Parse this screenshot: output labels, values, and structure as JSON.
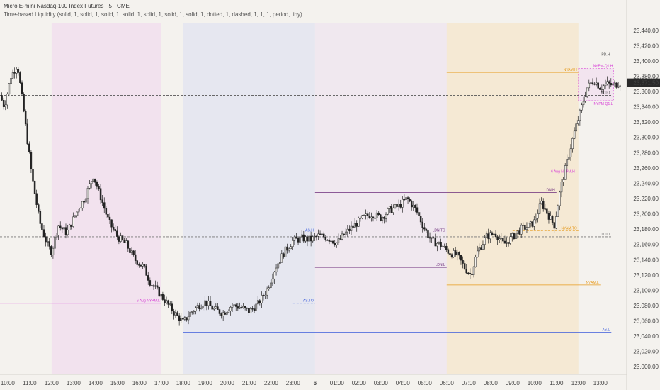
{
  "header": {
    "title": "Micro E-mini Nasdaq-100 Index Futures · 5 · CME",
    "indicator": "Time-based Liquidity (solid, 1, solid, 1, solid, 1, solid, 1, solid, 1, solid, 1, solid, 1, dotted, 1, dashed, 1, 1, 1, period, tiny)"
  },
  "colors": {
    "background": "#f4f2ee",
    "up_candle": "#222222",
    "down_candle": "#222222",
    "asia": "#3b5bdb",
    "london": "#6b2a7a",
    "ny": "#e69a1c",
    "prev_high_low": "#d63ad6",
    "price_badge": "#2a2a2a"
  },
  "chart_data": {
    "type": "candlestick",
    "title": "Micro E-mini Nasdaq-100 Index Futures · 5 · CME",
    "y_range": [
      22990,
      23450
    ],
    "y_ticks": [
      "23,440.00",
      "23,420.00",
      "23,400.00",
      "23,380.00",
      "23,360.00",
      "23,340.00",
      "23,320.00",
      "23,300.00",
      "23,280.00",
      "23,260.00",
      "23,240.00",
      "23,220.00",
      "23,200.00",
      "23,180.00",
      "23,160.00",
      "23,140.00",
      "23,120.00",
      "23,100.00",
      "23,080.00",
      "23,060.00",
      "23,040.00",
      "23,020.00",
      "23,000.00"
    ],
    "x_ticks": [
      "10:00",
      "11:00",
      "12:00",
      "13:00",
      "14:00",
      "15:00",
      "16:00",
      "17:00",
      "18:00",
      "19:00",
      "20:00",
      "21:00",
      "22:00",
      "23:00",
      "6",
      "01:00",
      "02:00",
      "03:00",
      "04:00",
      "05:00",
      "06:00",
      "07:00",
      "08:00",
      "09:00",
      "10:00",
      "11:00",
      "12:00",
      "13:00"
    ],
    "x_tick_hours": [
      10,
      11,
      12,
      13,
      14,
      15,
      16,
      17,
      18,
      19,
      20,
      21,
      22,
      23,
      24,
      25,
      26,
      27,
      28,
      29,
      30,
      31,
      32,
      33,
      34,
      35,
      36,
      37
    ],
    "x_range_hours": [
      9.65,
      38.2
    ],
    "current_price": "23,371.50",
    "current_value": 23371.5,
    "anchors": [
      [
        9.65,
        23355
      ],
      [
        9.85,
        23340
      ],
      [
        10.15,
        23380
      ],
      [
        10.45,
        23395
      ],
      [
        10.75,
        23330
      ],
      [
        11.1,
        23250
      ],
      [
        11.45,
        23190
      ],
      [
        11.8,
        23160
      ],
      [
        12.0,
        23150
      ],
      [
        12.3,
        23185
      ],
      [
        12.7,
        23175
      ],
      [
        13.1,
        23200
      ],
      [
        13.5,
        23220
      ],
      [
        13.9,
        23250
      ],
      [
        14.2,
        23225
      ],
      [
        14.6,
        23190
      ],
      [
        15.0,
        23170
      ],
      [
        15.4,
        23160
      ],
      [
        15.8,
        23140
      ],
      [
        16.2,
        23130
      ],
      [
        16.5,
        23110
      ],
      [
        16.8,
        23100
      ],
      [
        17.2,
        23085
      ],
      [
        17.6,
        23070
      ],
      [
        18.0,
        23058
      ],
      [
        18.3,
        23070
      ],
      [
        18.7,
        23080
      ],
      [
        19.0,
        23085
      ],
      [
        19.4,
        23075
      ],
      [
        19.8,
        23070
      ],
      [
        20.2,
        23080
      ],
      [
        20.6,
        23078
      ],
      [
        21.0,
        23072
      ],
      [
        21.4,
        23082
      ],
      [
        21.8,
        23100
      ],
      [
        22.2,
        23130
      ],
      [
        22.6,
        23150
      ],
      [
        23.0,
        23165
      ],
      [
        23.4,
        23168
      ],
      [
        23.8,
        23166
      ],
      [
        24.2,
        23172
      ],
      [
        24.6,
        23168
      ],
      [
        25.0,
        23162
      ],
      [
        25.4,
        23175
      ],
      [
        25.8,
        23185
      ],
      [
        26.2,
        23195
      ],
      [
        26.6,
        23200
      ],
      [
        27.0,
        23195
      ],
      [
        27.4,
        23205
      ],
      [
        27.8,
        23210
      ],
      [
        28.2,
        23220
      ],
      [
        28.6,
        23205
      ],
      [
        29.0,
        23180
      ],
      [
        29.3,
        23165
      ],
      [
        29.7,
        23160
      ],
      [
        30.1,
        23150
      ],
      [
        30.5,
        23145
      ],
      [
        30.8,
        23130
      ],
      [
        31.1,
        23120
      ],
      [
        31.4,
        23150
      ],
      [
        31.8,
        23170
      ],
      [
        32.2,
        23175
      ],
      [
        32.6,
        23160
      ],
      [
        33.0,
        23170
      ],
      [
        33.4,
        23180
      ],
      [
        33.8,
        23185
      ],
      [
        34.0,
        23190
      ],
      [
        34.3,
        23215
      ],
      [
        34.6,
        23200
      ],
      [
        34.9,
        23185
      ],
      [
        35.2,
        23235
      ],
      [
        35.5,
        23270
      ],
      [
        35.8,
        23305
      ],
      [
        36.1,
        23335
      ],
      [
        36.4,
        23365
      ],
      [
        36.7,
        23375
      ],
      [
        37.0,
        23365
      ],
      [
        37.3,
        23370
      ],
      [
        37.6,
        23368
      ],
      [
        37.9,
        23371.5
      ]
    ],
    "sessions": [
      {
        "name": "prev",
        "start": 12.0,
        "end": 17.0,
        "fill": "#f0d6ef",
        "opacity": 0.55
      },
      {
        "name": "asia",
        "start": 18.0,
        "end": 24.0,
        "fill": "#dfe3f1",
        "opacity": 0.7
      },
      {
        "name": "london",
        "start": 24.0,
        "end": 30.0,
        "fill": "#eadcef",
        "opacity": 0.45
      },
      {
        "name": "ny",
        "start": 30.0,
        "end": 36.0,
        "fill": "#f6e2c0",
        "opacity": 0.55
      }
    ],
    "levels": [
      {
        "label": "PD.H",
        "value": 23405,
        "from": 9.65,
        "to": 37.5,
        "color": "#555555",
        "dash": ""
      },
      {
        "label": "W.TO",
        "value": 23355,
        "from": 9.65,
        "to": 37.5,
        "color": "#555555",
        "dash": "3,2"
      },
      {
        "label": "NYAM.H",
        "value": 23385,
        "from": 30.0,
        "to": 36.0,
        "color": "#e69a1c",
        "dash": ""
      },
      {
        "label": "6 Aug NYPM.H",
        "value": 23252,
        "from": 12.0,
        "to": 35.9,
        "color": "#d63ad6",
        "dash": ""
      },
      {
        "label": "LDN.H",
        "value": 23228,
        "from": 24.0,
        "to": 35.0,
        "color": "#6b2a7a",
        "dash": ""
      },
      {
        "label": "AS.H",
        "value": 23175,
        "from": 18.0,
        "to": 24.0,
        "color": "#3b5bdb",
        "dash": ""
      },
      {
        "label": "LDN.TO",
        "value": 23175,
        "from": 24.0,
        "to": 30.0,
        "color": "#6b2a7a",
        "dash": "3,2"
      },
      {
        "label": "NYAM.TO",
        "value": 23178,
        "from": 33.0,
        "to": 36.0,
        "color": "#e69a1c",
        "dash": "3,2"
      },
      {
        "label": "D.TO",
        "value": 23170,
        "from": 9.65,
        "to": 37.5,
        "color": "#777777",
        "dash": "3,2"
      },
      {
        "label": "LDN.L",
        "value": 23130,
        "from": 24.0,
        "to": 30.0,
        "color": "#6b2a7a",
        "dash": ""
      },
      {
        "label": "NYAM.L",
        "value": 23107,
        "from": 30.0,
        "to": 37.0,
        "color": "#e69a1c",
        "dash": ""
      },
      {
        "label": "6 Aug NYPM.L",
        "value": 23083,
        "from": 9.65,
        "to": 17.0,
        "color": "#d63ad6",
        "dash": ""
      },
      {
        "label": "AS.TO",
        "value": 23083,
        "from": 23.0,
        "to": 24.0,
        "color": "#3b5bdb",
        "dash": "3,2"
      },
      {
        "label": "AS.L",
        "value": 23045,
        "from": 18.0,
        "to": 37.5,
        "color": "#3b5bdb",
        "dash": ""
      }
    ],
    "ny_box": {
      "label_top": "NYPM-Q1.H",
      "label_bottom": "NYPM-Q1.L",
      "top": 23390,
      "bottom": 23348,
      "start": 36.0,
      "end": 37.6,
      "color": "#d63ad6"
    }
  }
}
